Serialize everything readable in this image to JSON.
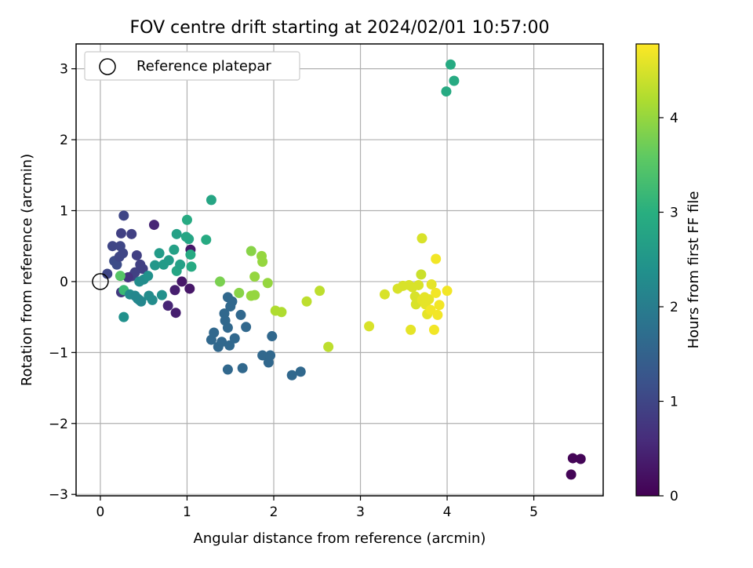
{
  "chart_data": {
    "type": "scatter",
    "title": "FOV centre drift starting at 2024/02/01 10:57:00",
    "xlabel": "Angular distance from reference (arcmin)",
    "ylabel": "Rotation from reference (arcmin)",
    "xlim": [
      -0.28,
      5.8
    ],
    "ylim": [
      -3.02,
      3.35
    ],
    "xticks": [
      0,
      1,
      2,
      3,
      4,
      5
    ],
    "xtick_labels": [
      "0",
      "1",
      "2",
      "3",
      "4",
      "5"
    ],
    "yticks": [
      -3,
      -2,
      -1,
      0,
      1,
      2,
      3
    ],
    "ytick_labels": [
      "−3",
      "−2",
      "−1",
      "0",
      "1",
      "2",
      "3"
    ],
    "grid": true,
    "legend": {
      "position": "top-left",
      "entries": [
        "Reference platepar"
      ]
    },
    "reference_point": {
      "x": 0,
      "y": 0
    },
    "colorbar": {
      "label": "Hours from first FF file",
      "colormap": "viridis",
      "range": [
        0,
        4.78
      ],
      "ticks": [
        0,
        1,
        2,
        3,
        4
      ],
      "tick_labels": [
        "0",
        "1",
        "2",
        "3",
        "4"
      ]
    },
    "points": [
      {
        "x": 0.08,
        "y": 0.11,
        "c": 1.0
      },
      {
        "x": 0.14,
        "y": 0.5,
        "c": 1.0
      },
      {
        "x": 0.16,
        "y": 0.29,
        "c": 1.1
      },
      {
        "x": 0.19,
        "y": 0.24,
        "c": 1.1
      },
      {
        "x": 0.22,
        "y": 0.35,
        "c": 1.0
      },
      {
        "x": 0.23,
        "y": 0.5,
        "c": 1.0
      },
      {
        "x": 0.24,
        "y": 0.68,
        "c": 0.9
      },
      {
        "x": 0.26,
        "y": 0.4,
        "c": 1.0
      },
      {
        "x": 0.27,
        "y": 0.93,
        "c": 1.0
      },
      {
        "x": 0.36,
        "y": 0.67,
        "c": 0.9
      },
      {
        "x": 0.37,
        "y": 0.08,
        "c": 0.9
      },
      {
        "x": 0.4,
        "y": 0.13,
        "c": 0.9
      },
      {
        "x": 0.42,
        "y": 0.37,
        "c": 0.9
      },
      {
        "x": 0.46,
        "y": 0.24,
        "c": 0.9
      },
      {
        "x": 0.49,
        "y": 0.18,
        "c": 0.9
      },
      {
        "x": 0.24,
        "y": -0.15,
        "c": 0.8
      },
      {
        "x": 0.32,
        "y": 0.06,
        "c": 0.7
      },
      {
        "x": 0.62,
        "y": 0.8,
        "c": 0.5
      },
      {
        "x": 0.86,
        "y": -0.12,
        "c": 0.4
      },
      {
        "x": 0.94,
        "y": 0.0,
        "c": 0.3
      },
      {
        "x": 1.04,
        "y": 0.45,
        "c": 0.3
      },
      {
        "x": 1.03,
        "y": -0.1,
        "c": 0.3
      },
      {
        "x": 0.78,
        "y": -0.34,
        "c": 0.5
      },
      {
        "x": 0.87,
        "y": -0.44,
        "c": 0.4
      },
      {
        "x": 0.23,
        "y": 0.08,
        "c": 3.5
      },
      {
        "x": 0.27,
        "y": -0.12,
        "c": 3.2
      },
      {
        "x": 0.27,
        "y": -0.5,
        "c": 2.4
      },
      {
        "x": 0.34,
        "y": -0.18,
        "c": 2.3
      },
      {
        "x": 0.4,
        "y": -0.2,
        "c": 2.2
      },
      {
        "x": 0.43,
        "y": -0.24,
        "c": 2.2
      },
      {
        "x": 0.45,
        "y": -0.26,
        "c": 2.2
      },
      {
        "x": 0.47,
        "y": -0.28,
        "c": 2.2
      },
      {
        "x": 0.45,
        "y": 0.0,
        "c": 2.3
      },
      {
        "x": 0.5,
        "y": 0.03,
        "c": 2.3
      },
      {
        "x": 0.55,
        "y": 0.08,
        "c": 2.4
      },
      {
        "x": 0.56,
        "y": -0.2,
        "c": 2.3
      },
      {
        "x": 0.6,
        "y": -0.26,
        "c": 2.3
      },
      {
        "x": 0.63,
        "y": 0.23,
        "c": 2.5
      },
      {
        "x": 0.68,
        "y": 0.4,
        "c": 2.6
      },
      {
        "x": 0.71,
        "y": -0.19,
        "c": 2.4
      },
      {
        "x": 0.73,
        "y": 0.24,
        "c": 2.6
      },
      {
        "x": 0.79,
        "y": 0.3,
        "c": 2.6
      },
      {
        "x": 0.85,
        "y": 0.45,
        "c": 2.7
      },
      {
        "x": 0.88,
        "y": 0.67,
        "c": 2.7
      },
      {
        "x": 0.88,
        "y": 0.15,
        "c": 2.8
      },
      {
        "x": 0.92,
        "y": 0.24,
        "c": 2.7
      },
      {
        "x": 0.99,
        "y": 0.63,
        "c": 2.8
      },
      {
        "x": 1.02,
        "y": 0.6,
        "c": 2.8
      },
      {
        "x": 1.0,
        "y": 0.87,
        "c": 2.9
      },
      {
        "x": 1.04,
        "y": 0.38,
        "c": 2.9
      },
      {
        "x": 1.05,
        "y": 0.21,
        "c": 2.9
      },
      {
        "x": 1.22,
        "y": 0.59,
        "c": 2.9
      },
      {
        "x": 1.28,
        "y": 1.15,
        "c": 2.8
      },
      {
        "x": 1.28,
        "y": -0.82,
        "c": 1.6
      },
      {
        "x": 1.31,
        "y": -0.72,
        "c": 1.6
      },
      {
        "x": 1.36,
        "y": -0.92,
        "c": 1.6
      },
      {
        "x": 1.4,
        "y": -0.85,
        "c": 1.6
      },
      {
        "x": 1.43,
        "y": -0.45,
        "c": 1.6
      },
      {
        "x": 1.44,
        "y": -0.55,
        "c": 1.6
      },
      {
        "x": 1.47,
        "y": -0.22,
        "c": 1.6
      },
      {
        "x": 1.47,
        "y": -0.65,
        "c": 1.6
      },
      {
        "x": 1.47,
        "y": -1.24,
        "c": 1.6
      },
      {
        "x": 1.49,
        "y": -0.9,
        "c": 1.6
      },
      {
        "x": 1.5,
        "y": -0.35,
        "c": 1.6
      },
      {
        "x": 1.52,
        "y": -0.28,
        "c": 1.6
      },
      {
        "x": 1.55,
        "y": -0.8,
        "c": 1.6
      },
      {
        "x": 1.62,
        "y": -0.47,
        "c": 1.6
      },
      {
        "x": 1.64,
        "y": -1.22,
        "c": 1.6
      },
      {
        "x": 1.68,
        "y": -0.64,
        "c": 1.6
      },
      {
        "x": 1.87,
        "y": -1.04,
        "c": 1.6
      },
      {
        "x": 1.94,
        "y": -1.14,
        "c": 1.6
      },
      {
        "x": 1.96,
        "y": -1.04,
        "c": 1.6
      },
      {
        "x": 1.98,
        "y": -0.77,
        "c": 1.6
      },
      {
        "x": 2.21,
        "y": -1.32,
        "c": 1.6
      },
      {
        "x": 2.31,
        "y": -1.27,
        "c": 1.6
      },
      {
        "x": 1.38,
        "y": 0.0,
        "c": 3.8
      },
      {
        "x": 1.6,
        "y": -0.16,
        "c": 3.9
      },
      {
        "x": 1.74,
        "y": 0.43,
        "c": 3.9
      },
      {
        "x": 1.74,
        "y": -0.2,
        "c": 4.0
      },
      {
        "x": 1.78,
        "y": -0.19,
        "c": 4.0
      },
      {
        "x": 1.78,
        "y": 0.07,
        "c": 4.0
      },
      {
        "x": 1.86,
        "y": 0.36,
        "c": 4.0
      },
      {
        "x": 1.87,
        "y": 0.28,
        "c": 4.0
      },
      {
        "x": 1.93,
        "y": -0.02,
        "c": 4.0
      },
      {
        "x": 2.02,
        "y": -0.41,
        "c": 4.2
      },
      {
        "x": 2.09,
        "y": -0.43,
        "c": 4.2
      },
      {
        "x": 2.38,
        "y": -0.28,
        "c": 4.3
      },
      {
        "x": 2.53,
        "y": -0.13,
        "c": 4.3
      },
      {
        "x": 2.63,
        "y": -0.92,
        "c": 4.3
      },
      {
        "x": 3.1,
        "y": -0.63,
        "c": 4.5
      },
      {
        "x": 3.28,
        "y": -0.18,
        "c": 4.5
      },
      {
        "x": 3.43,
        "y": -0.1,
        "c": 4.5
      },
      {
        "x": 3.49,
        "y": -0.06,
        "c": 4.5
      },
      {
        "x": 3.56,
        "y": -0.05,
        "c": 4.5
      },
      {
        "x": 3.58,
        "y": -0.68,
        "c": 4.6
      },
      {
        "x": 3.6,
        "y": -0.08,
        "c": 4.5
      },
      {
        "x": 3.63,
        "y": -0.21,
        "c": 4.5
      },
      {
        "x": 3.64,
        "y": -0.32,
        "c": 4.5
      },
      {
        "x": 3.67,
        "y": -0.05,
        "c": 4.5
      },
      {
        "x": 3.7,
        "y": 0.1,
        "c": 4.4
      },
      {
        "x": 3.71,
        "y": 0.61,
        "c": 4.5
      },
      {
        "x": 3.71,
        "y": -0.26,
        "c": 4.6
      },
      {
        "x": 3.74,
        "y": -0.22,
        "c": 4.6
      },
      {
        "x": 3.75,
        "y": -0.32,
        "c": 4.6
      },
      {
        "x": 3.77,
        "y": -0.46,
        "c": 4.6
      },
      {
        "x": 3.79,
        "y": -0.25,
        "c": 4.6
      },
      {
        "x": 3.81,
        "y": -0.4,
        "c": 4.7
      },
      {
        "x": 3.82,
        "y": -0.04,
        "c": 4.6
      },
      {
        "x": 3.85,
        "y": -0.68,
        "c": 4.7
      },
      {
        "x": 3.87,
        "y": 0.32,
        "c": 4.7
      },
      {
        "x": 3.87,
        "y": -0.16,
        "c": 4.7
      },
      {
        "x": 3.89,
        "y": -0.47,
        "c": 4.7
      },
      {
        "x": 3.91,
        "y": -0.33,
        "c": 4.7
      },
      {
        "x": 4.0,
        "y": -0.13,
        "c": 4.7
      },
      {
        "x": 3.99,
        "y": 2.68,
        "c": 2.9
      },
      {
        "x": 4.04,
        "y": 3.06,
        "c": 2.9
      },
      {
        "x": 4.08,
        "y": 2.83,
        "c": 2.9
      },
      {
        "x": 5.43,
        "y": -2.72,
        "c": 0.05
      },
      {
        "x": 5.45,
        "y": -2.49,
        "c": 0.05
      },
      {
        "x": 5.54,
        "y": -2.5,
        "c": 0.05
      }
    ]
  }
}
